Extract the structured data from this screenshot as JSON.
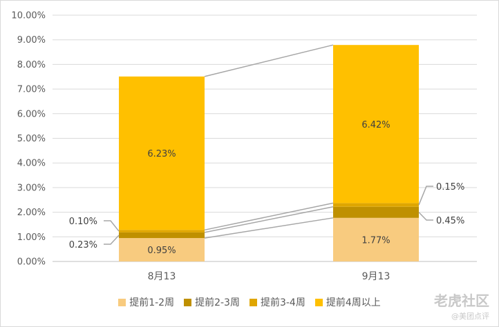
{
  "chart_data": {
    "type": "bar",
    "stacked": true,
    "categories": [
      "8月13",
      "9月13"
    ],
    "series": [
      {
        "name": "提前1-2周",
        "values": [
          0.95,
          1.77
        ],
        "labels": [
          "0.95%",
          "1.77%"
        ],
        "color": "#f8cb7f"
      },
      {
        "name": "提前2-3周",
        "values": [
          0.23,
          0.45
        ],
        "labels": [
          "0.23%",
          "0.45%"
        ],
        "color": "#bf9000"
      },
      {
        "name": "提前3-4周",
        "values": [
          0.1,
          0.15
        ],
        "labels": [
          "0.10%",
          "0.15%"
        ],
        "color": "#dfa600"
      },
      {
        "name": "提前4周以上",
        "values": [
          6.23,
          6.42
        ],
        "labels": [
          "6.23%",
          "6.42%"
        ],
        "color": "#ffc000"
      }
    ],
    "y_ticks": [
      "0.00%",
      "1.00%",
      "2.00%",
      "3.00%",
      "4.00%",
      "5.00%",
      "6.00%",
      "7.00%",
      "8.00%",
      "9.00%",
      "10.00%"
    ],
    "ylim": [
      0,
      10
    ],
    "grid": true,
    "legend_position": "bottom",
    "series_lines": true
  },
  "watermark": {
    "main": "老虎社区",
    "sub": "@美团点评"
  }
}
